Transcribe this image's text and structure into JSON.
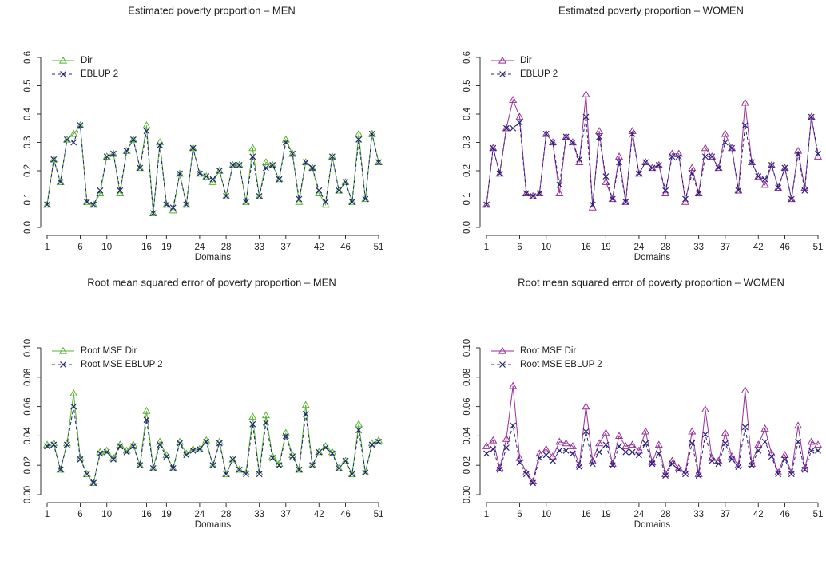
{
  "chart_data": [
    {
      "type": "line",
      "title": "Estimated poverty proportion – MEN",
      "xlabel": "Domains",
      "x": [
        1,
        2,
        3,
        4,
        5,
        6,
        7,
        8,
        9,
        10,
        11,
        12,
        13,
        14,
        15,
        16,
        17,
        18,
        19,
        20,
        21,
        22,
        23,
        24,
        25,
        26,
        27,
        28,
        29,
        30,
        31,
        32,
        33,
        34,
        35,
        36,
        37,
        38,
        39,
        40,
        41,
        42,
        43,
        44,
        45,
        46,
        47,
        48,
        49,
        50,
        51
      ],
      "xlim": [
        1,
        51
      ],
      "xticks": [
        1,
        6,
        10,
        16,
        19,
        24,
        28,
        33,
        37,
        42,
        46,
        51
      ],
      "ylim": [
        0,
        0.6
      ],
      "yticks": [
        {
          "value": 0,
          "label": "0.0"
        },
        0.1,
        0.2,
        0.3,
        0.4,
        0.5,
        0.6
      ],
      "legend": "top-left",
      "series": [
        {
          "name": "Dir",
          "color": "#55b52c",
          "marker": "triangle",
          "linestyle": "solid",
          "values": [
            0.08,
            0.24,
            0.16,
            0.31,
            0.33,
            0.36,
            0.09,
            0.08,
            0.12,
            0.25,
            0.26,
            0.12,
            0.27,
            0.31,
            0.21,
            0.36,
            0.05,
            0.3,
            0.08,
            0.06,
            0.19,
            0.08,
            0.28,
            0.19,
            0.18,
            0.16,
            0.2,
            0.11,
            0.22,
            0.22,
            0.09,
            0.28,
            0.11,
            0.23,
            0.22,
            0.17,
            0.31,
            0.26,
            0.09,
            0.23,
            0.21,
            0.12,
            0.08,
            0.25,
            0.13,
            0.16,
            0.09,
            0.33,
            0.1,
            0.33,
            0.23
          ]
        },
        {
          "name": "EBLUP 2",
          "color": "#23237a",
          "marker": "x",
          "linestyle": "dashed",
          "values": [
            0.08,
            0.24,
            0.16,
            0.31,
            0.3,
            0.36,
            0.09,
            0.08,
            0.13,
            0.25,
            0.26,
            0.13,
            0.27,
            0.31,
            0.21,
            0.34,
            0.05,
            0.29,
            0.08,
            0.07,
            0.19,
            0.08,
            0.28,
            0.19,
            0.18,
            0.17,
            0.2,
            0.11,
            0.22,
            0.22,
            0.09,
            0.25,
            0.11,
            0.21,
            0.22,
            0.17,
            0.3,
            0.26,
            0.1,
            0.23,
            0.21,
            0.13,
            0.09,
            0.25,
            0.13,
            0.16,
            0.09,
            0.31,
            0.1,
            0.33,
            0.23
          ]
        }
      ]
    },
    {
      "type": "line",
      "title": "Estimated poverty proportion – WOMEN",
      "xlabel": "Domains",
      "x": [
        1,
        2,
        3,
        4,
        5,
        6,
        7,
        8,
        9,
        10,
        11,
        12,
        13,
        14,
        15,
        16,
        17,
        18,
        19,
        20,
        21,
        22,
        23,
        24,
        25,
        26,
        27,
        28,
        29,
        30,
        31,
        32,
        33,
        34,
        35,
        36,
        37,
        38,
        39,
        40,
        41,
        42,
        43,
        44,
        45,
        46,
        47,
        48,
        49,
        50,
        51
      ],
      "xlim": [
        1,
        51
      ],
      "xticks": [
        1,
        6,
        10,
        16,
        19,
        24,
        28,
        33,
        37,
        42,
        46,
        51
      ],
      "ylim": [
        0,
        0.6
      ],
      "yticks": [
        {
          "value": 0,
          "label": "0.0"
        },
        0.1,
        0.2,
        0.3,
        0.4,
        0.5,
        0.6
      ],
      "legend": "top-left",
      "series": [
        {
          "name": "Dir",
          "color": "#9b2f9b",
          "marker": "triangle",
          "linestyle": "solid",
          "values": [
            0.08,
            0.28,
            0.19,
            0.35,
            0.45,
            0.39,
            0.12,
            0.11,
            0.12,
            0.33,
            0.3,
            0.12,
            0.32,
            0.3,
            0.23,
            0.47,
            0.07,
            0.34,
            0.16,
            0.1,
            0.25,
            0.09,
            0.34,
            0.19,
            0.23,
            0.21,
            0.22,
            0.12,
            0.26,
            0.26,
            0.09,
            0.21,
            0.12,
            0.28,
            0.25,
            0.21,
            0.33,
            0.28,
            0.13,
            0.44,
            0.23,
            0.18,
            0.15,
            0.22,
            0.14,
            0.21,
            0.1,
            0.27,
            0.14,
            0.39,
            0.25
          ]
        },
        {
          "name": "EBLUP 2",
          "color": "#23237a",
          "marker": "x",
          "linestyle": "dashed",
          "values": [
            0.08,
            0.28,
            0.19,
            0.35,
            0.35,
            0.37,
            0.12,
            0.11,
            0.12,
            0.33,
            0.3,
            0.15,
            0.32,
            0.3,
            0.24,
            0.39,
            0.08,
            0.32,
            0.18,
            0.1,
            0.23,
            0.09,
            0.33,
            0.19,
            0.23,
            0.21,
            0.22,
            0.13,
            0.25,
            0.25,
            0.1,
            0.19,
            0.12,
            0.25,
            0.25,
            0.21,
            0.3,
            0.28,
            0.13,
            0.36,
            0.23,
            0.18,
            0.17,
            0.22,
            0.14,
            0.21,
            0.1,
            0.26,
            0.13,
            0.39,
            0.26
          ]
        }
      ]
    },
    {
      "type": "line",
      "title": "Root mean squared error of poverty proportion – MEN",
      "xlabel": "Domains",
      "x": [
        1,
        2,
        3,
        4,
        5,
        6,
        7,
        8,
        9,
        10,
        11,
        12,
        13,
        14,
        15,
        16,
        17,
        18,
        19,
        20,
        21,
        22,
        23,
        24,
        25,
        26,
        27,
        28,
        29,
        30,
        31,
        32,
        33,
        34,
        35,
        36,
        37,
        38,
        39,
        40,
        41,
        42,
        43,
        44,
        45,
        46,
        47,
        48,
        49,
        50,
        51
      ],
      "xlim": [
        1,
        51
      ],
      "xticks": [
        1,
        6,
        10,
        16,
        19,
        24,
        28,
        33,
        37,
        42,
        46,
        51
      ],
      "ylim": [
        0,
        0.1
      ],
      "yticks": [
        {
          "value": 0,
          "label": "0.00"
        },
        {
          "value": 0.02,
          "label": "0.02"
        },
        {
          "value": 0.04,
          "label": "0.04"
        },
        {
          "value": 0.06,
          "label": "0.06"
        },
        {
          "value": 0.08,
          "label": "0.08"
        },
        {
          "value": 0.1,
          "label": "0.10"
        }
      ],
      "legend": "top-left",
      "series": [
        {
          "name": "Root MSE Dir",
          "color": "#55b52c",
          "marker": "triangle",
          "linestyle": "solid",
          "values": [
            0.034,
            0.035,
            0.017,
            0.035,
            0.069,
            0.025,
            0.014,
            0.008,
            0.029,
            0.03,
            0.025,
            0.034,
            0.03,
            0.034,
            0.02,
            0.057,
            0.018,
            0.036,
            0.027,
            0.018,
            0.036,
            0.028,
            0.031,
            0.031,
            0.037,
            0.02,
            0.036,
            0.014,
            0.024,
            0.017,
            0.015,
            0.053,
            0.015,
            0.054,
            0.026,
            0.021,
            0.042,
            0.027,
            0.017,
            0.061,
            0.02,
            0.029,
            0.033,
            0.029,
            0.018,
            0.023,
            0.014,
            0.048,
            0.015,
            0.035,
            0.037
          ]
        },
        {
          "name": "Root MSE EBLUP 2",
          "color": "#23237a",
          "marker": "x",
          "linestyle": "dashed",
          "values": [
            0.033,
            0.034,
            0.017,
            0.034,
            0.06,
            0.024,
            0.014,
            0.008,
            0.028,
            0.029,
            0.024,
            0.033,
            0.029,
            0.033,
            0.02,
            0.051,
            0.018,
            0.034,
            0.026,
            0.018,
            0.035,
            0.027,
            0.03,
            0.031,
            0.036,
            0.02,
            0.035,
            0.014,
            0.024,
            0.017,
            0.014,
            0.048,
            0.014,
            0.049,
            0.025,
            0.02,
            0.04,
            0.026,
            0.017,
            0.055,
            0.02,
            0.029,
            0.032,
            0.028,
            0.018,
            0.023,
            0.014,
            0.044,
            0.015,
            0.034,
            0.036
          ]
        }
      ]
    },
    {
      "type": "line",
      "title": "Root mean squared error of poverty proportion – WOMEN",
      "xlabel": "Domains",
      "x": [
        1,
        2,
        3,
        4,
        5,
        6,
        7,
        8,
        9,
        10,
        11,
        12,
        13,
        14,
        15,
        16,
        17,
        18,
        19,
        20,
        21,
        22,
        23,
        24,
        25,
        26,
        27,
        28,
        29,
        30,
        31,
        32,
        33,
        34,
        35,
        36,
        37,
        38,
        39,
        40,
        41,
        42,
        43,
        44,
        45,
        46,
        47,
        48,
        49,
        50,
        51
      ],
      "xlim": [
        1,
        51
      ],
      "xticks": [
        1,
        6,
        10,
        16,
        19,
        24,
        28,
        33,
        37,
        42,
        46,
        51
      ],
      "ylim": [
        0,
        0.1
      ],
      "yticks": [
        {
          "value": 0,
          "label": "0.00"
        },
        {
          "value": 0.02,
          "label": "0.02"
        },
        {
          "value": 0.04,
          "label": "0.04"
        },
        {
          "value": 0.06,
          "label": "0.06"
        },
        {
          "value": 0.08,
          "label": "0.08"
        },
        {
          "value": 0.1,
          "label": "0.10"
        }
      ],
      "legend": "top-left",
      "series": [
        {
          "name": "Root MSE Dir",
          "color": "#9b2f9b",
          "marker": "triangle",
          "linestyle": "solid",
          "values": [
            0.033,
            0.037,
            0.018,
            0.038,
            0.074,
            0.025,
            0.015,
            0.009,
            0.028,
            0.031,
            0.026,
            0.036,
            0.035,
            0.033,
            0.02,
            0.06,
            0.023,
            0.035,
            0.042,
            0.021,
            0.04,
            0.033,
            0.034,
            0.03,
            0.043,
            0.022,
            0.034,
            0.014,
            0.023,
            0.018,
            0.015,
            0.043,
            0.014,
            0.058,
            0.025,
            0.023,
            0.042,
            0.026,
            0.02,
            0.071,
            0.021,
            0.034,
            0.045,
            0.028,
            0.015,
            0.027,
            0.015,
            0.047,
            0.018,
            0.036,
            0.034
          ]
        },
        {
          "name": "Root MSE EBLUP 2",
          "color": "#23237a",
          "marker": "x",
          "linestyle": "dashed",
          "values": [
            0.028,
            0.031,
            0.017,
            0.032,
            0.047,
            0.022,
            0.014,
            0.008,
            0.025,
            0.027,
            0.023,
            0.03,
            0.03,
            0.028,
            0.019,
            0.043,
            0.021,
            0.029,
            0.034,
            0.02,
            0.033,
            0.029,
            0.029,
            0.027,
            0.035,
            0.021,
            0.028,
            0.013,
            0.021,
            0.017,
            0.014,
            0.035,
            0.013,
            0.041,
            0.023,
            0.021,
            0.035,
            0.024,
            0.019,
            0.046,
            0.02,
            0.03,
            0.036,
            0.026,
            0.014,
            0.024,
            0.014,
            0.036,
            0.017,
            0.03,
            0.03
          ]
        }
      ]
    }
  ]
}
